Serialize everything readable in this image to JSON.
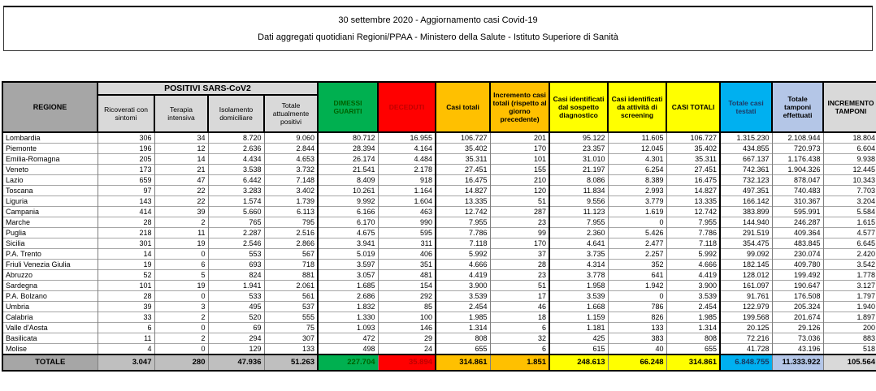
{
  "header": {
    "title": "30 settembre 2020 - Aggiornamento casi Covid-19",
    "subtitle": "Dati aggregati quotidiani Regioni/PPAA - Ministero della Salute - Istituto Superiore di Sanità"
  },
  "colors": {
    "header_gray": "#a6a6a6",
    "subheader_gray": "#d9d9d9",
    "green": "#00b050",
    "red": "#ff0000",
    "orange": "#ffc000",
    "yellow": "#ffff00",
    "cyan": "#00b0f0",
    "light_blue": "#b4c6e7",
    "total_gray": "#bfbfbf"
  },
  "table": {
    "region_header": "REGIONE",
    "group_header": "POSITIVI SARS-CoV2",
    "sub_headers": [
      "Ricoverati con sintomi",
      "Terapia intensiva",
      "Isolamento domiciliare",
      "Totale attualmente positivi"
    ],
    "col_headers": [
      "DIMESSI GUARITI",
      "DECEDUTI",
      "Casi totali",
      "Incremento casi totali (rispetto al giorno precedente)",
      "Casi identificati dal sospetto diagnostico",
      "Casi identificati da attività di screening",
      "CASI TOTALI",
      "Totale casi testati",
      "Totale tamponi effettuati",
      "INCREMENTO TAMPONI"
    ],
    "rows": [
      {
        "region": "Lombardia",
        "values": [
          "306",
          "34",
          "8.720",
          "9.060",
          "80.712",
          "16.955",
          "106.727",
          "201",
          "95.122",
          "11.605",
          "106.727",
          "1.315.230",
          "2.108.944",
          "18.804"
        ]
      },
      {
        "region": "Piemonte",
        "values": [
          "196",
          "12",
          "2.636",
          "2.844",
          "28.394",
          "4.164",
          "35.402",
          "170",
          "23.357",
          "12.045",
          "35.402",
          "434.855",
          "720.973",
          "6.604"
        ]
      },
      {
        "region": "Emilia-Romagna",
        "values": [
          "205",
          "14",
          "4.434",
          "4.653",
          "26.174",
          "4.484",
          "35.311",
          "101",
          "31.010",
          "4.301",
          "35.311",
          "667.137",
          "1.176.438",
          "9.938"
        ]
      },
      {
        "region": "Veneto",
        "values": [
          "173",
          "21",
          "3.538",
          "3.732",
          "21.541",
          "2.178",
          "27.451",
          "155",
          "21.197",
          "6.254",
          "27.451",
          "742.361",
          "1.904.326",
          "12.445"
        ]
      },
      {
        "region": "Lazio",
        "values": [
          "659",
          "47",
          "6.442",
          "7.148",
          "8.409",
          "918",
          "16.475",
          "210",
          "8.086",
          "8.389",
          "16.475",
          "732.123",
          "878.047",
          "10.343"
        ]
      },
      {
        "region": "Toscana",
        "values": [
          "97",
          "22",
          "3.283",
          "3.402",
          "10.261",
          "1.164",
          "14.827",
          "120",
          "11.834",
          "2.993",
          "14.827",
          "497.351",
          "740.483",
          "7.703"
        ]
      },
      {
        "region": "Liguria",
        "values": [
          "143",
          "22",
          "1.574",
          "1.739",
          "9.992",
          "1.604",
          "13.335",
          "51",
          "9.556",
          "3.779",
          "13.335",
          "166.142",
          "310.367",
          "3.204"
        ]
      },
      {
        "region": "Campania",
        "values": [
          "414",
          "39",
          "5.660",
          "6.113",
          "6.166",
          "463",
          "12.742",
          "287",
          "11.123",
          "1.619",
          "12.742",
          "383.899",
          "595.991",
          "5.584"
        ]
      },
      {
        "region": "Marche",
        "values": [
          "28",
          "2",
          "765",
          "795",
          "6.170",
          "990",
          "7.955",
          "23",
          "7.955",
          "0",
          "7.955",
          "144.940",
          "246.287",
          "1.615"
        ]
      },
      {
        "region": "Puglia",
        "values": [
          "218",
          "11",
          "2.287",
          "2.516",
          "4.675",
          "595",
          "7.786",
          "99",
          "2.360",
          "5.426",
          "7.786",
          "291.519",
          "409.364",
          "4.577"
        ]
      },
      {
        "region": "Sicilia",
        "values": [
          "301",
          "19",
          "2.546",
          "2.866",
          "3.941",
          "311",
          "7.118",
          "170",
          "4.641",
          "2.477",
          "7.118",
          "354.475",
          "483.845",
          "6.645"
        ]
      },
      {
        "region": "P.A. Trento",
        "values": [
          "14",
          "0",
          "553",
          "567",
          "5.019",
          "406",
          "5.992",
          "37",
          "3.735",
          "2.257",
          "5.992",
          "99.092",
          "230.074",
          "2.420"
        ]
      },
      {
        "region": "Friuli Venezia Giulia",
        "values": [
          "19",
          "6",
          "693",
          "718",
          "3.597",
          "351",
          "4.666",
          "28",
          "4.314",
          "352",
          "4.666",
          "182.145",
          "409.780",
          "3.542"
        ]
      },
      {
        "region": "Abruzzo",
        "values": [
          "52",
          "5",
          "824",
          "881",
          "3.057",
          "481",
          "4.419",
          "23",
          "3.778",
          "641",
          "4.419",
          "128.012",
          "199.492",
          "1.778"
        ]
      },
      {
        "region": "Sardegna",
        "values": [
          "101",
          "19",
          "1.941",
          "2.061",
          "1.685",
          "154",
          "3.900",
          "51",
          "1.958",
          "1.942",
          "3.900",
          "161.097",
          "190.647",
          "3.127"
        ]
      },
      {
        "region": "P.A. Bolzano",
        "values": [
          "28",
          "0",
          "533",
          "561",
          "2.686",
          "292",
          "3.539",
          "17",
          "3.539",
          "0",
          "3.539",
          "91.761",
          "176.508",
          "1.797"
        ]
      },
      {
        "region": "Umbria",
        "values": [
          "39",
          "3",
          "495",
          "537",
          "1.832",
          "85",
          "2.454",
          "46",
          "1.668",
          "786",
          "2.454",
          "122.979",
          "205.324",
          "1.940"
        ]
      },
      {
        "region": "Calabria",
        "values": [
          "33",
          "2",
          "520",
          "555",
          "1.330",
          "100",
          "1.985",
          "18",
          "1.159",
          "826",
          "1.985",
          "199.568",
          "201.674",
          "1.897"
        ]
      },
      {
        "region": "Valle d'Aosta",
        "values": [
          "6",
          "0",
          "69",
          "75",
          "1.093",
          "146",
          "1.314",
          "6",
          "1.181",
          "133",
          "1.314",
          "20.125",
          "29.126",
          "200"
        ]
      },
      {
        "region": "Basilicata",
        "values": [
          "11",
          "2",
          "294",
          "307",
          "472",
          "29",
          "808",
          "32",
          "425",
          "383",
          "808",
          "72.216",
          "73.036",
          "883"
        ]
      },
      {
        "region": "Molise",
        "values": [
          "4",
          "0",
          "129",
          "133",
          "498",
          "24",
          "655",
          "6",
          "615",
          "40",
          "655",
          "41.728",
          "43.196",
          "518"
        ]
      }
    ],
    "total": {
      "label": "TOTALE",
      "values": [
        "3.047",
        "280",
        "47.936",
        "51.263",
        "227.704",
        "35.894",
        "314.861",
        "1.851",
        "248.613",
        "66.248",
        "314.861",
        "6.848.755",
        "11.333.922",
        "105.564"
      ]
    }
  }
}
